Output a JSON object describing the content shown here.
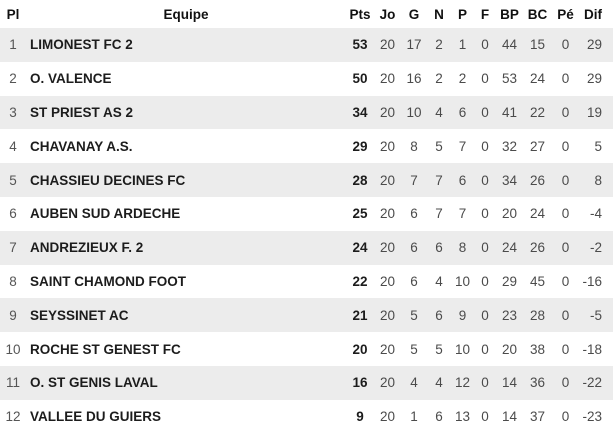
{
  "chart_data": {
    "type": "table",
    "description_colors": {
      "stripe_row_bg": "#ececec",
      "plain_row_bg": "#ffffff",
      "header_text": "#111111",
      "team_and_pts_text": "#1c1c1c",
      "stat_text": "#4b4b4b"
    },
    "columns": [
      {
        "key": "pl",
        "label": "Pl"
      },
      {
        "key": "equipe",
        "label": "Equipe"
      },
      {
        "key": "pts",
        "label": "Pts"
      },
      {
        "key": "jo",
        "label": "Jo"
      },
      {
        "key": "g",
        "label": "G"
      },
      {
        "key": "n",
        "label": "N"
      },
      {
        "key": "p",
        "label": "P"
      },
      {
        "key": "f",
        "label": "F"
      },
      {
        "key": "bp",
        "label": "BP"
      },
      {
        "key": "bc",
        "label": "BC"
      },
      {
        "key": "pe",
        "label": "Pé"
      },
      {
        "key": "dif",
        "label": "Dif"
      }
    ],
    "rows": [
      {
        "pl": 1,
        "equipe": "LIMONEST FC 2",
        "pts": 53,
        "jo": 20,
        "g": 17,
        "n": 2,
        "p": 1,
        "f": 0,
        "bp": 44,
        "bc": 15,
        "pe": 0,
        "dif": 29
      },
      {
        "pl": 2,
        "equipe": "O. VALENCE",
        "pts": 50,
        "jo": 20,
        "g": 16,
        "n": 2,
        "p": 2,
        "f": 0,
        "bp": 53,
        "bc": 24,
        "pe": 0,
        "dif": 29
      },
      {
        "pl": 3,
        "equipe": "ST PRIEST AS 2",
        "pts": 34,
        "jo": 20,
        "g": 10,
        "n": 4,
        "p": 6,
        "f": 0,
        "bp": 41,
        "bc": 22,
        "pe": 0,
        "dif": 19
      },
      {
        "pl": 4,
        "equipe": "CHAVANAY A.S.",
        "pts": 29,
        "jo": 20,
        "g": 8,
        "n": 5,
        "p": 7,
        "f": 0,
        "bp": 32,
        "bc": 27,
        "pe": 0,
        "dif": 5
      },
      {
        "pl": 5,
        "equipe": "CHASSIEU DECINES FC",
        "pts": 28,
        "jo": 20,
        "g": 7,
        "n": 7,
        "p": 6,
        "f": 0,
        "bp": 34,
        "bc": 26,
        "pe": 0,
        "dif": 8
      },
      {
        "pl": 6,
        "equipe": "AUBEN SUD ARDECHE",
        "pts": 25,
        "jo": 20,
        "g": 6,
        "n": 7,
        "p": 7,
        "f": 0,
        "bp": 20,
        "bc": 24,
        "pe": 0,
        "dif": -4
      },
      {
        "pl": 7,
        "equipe": "ANDREZIEUX F. 2",
        "pts": 24,
        "jo": 20,
        "g": 6,
        "n": 6,
        "p": 8,
        "f": 0,
        "bp": 24,
        "bc": 26,
        "pe": 0,
        "dif": -2
      },
      {
        "pl": 8,
        "equipe": "SAINT CHAMOND FOOT",
        "pts": 22,
        "jo": 20,
        "g": 6,
        "n": 4,
        "p": 10,
        "f": 0,
        "bp": 29,
        "bc": 45,
        "pe": 0,
        "dif": -16
      },
      {
        "pl": 9,
        "equipe": "SEYSSINET AC",
        "pts": 21,
        "jo": 20,
        "g": 5,
        "n": 6,
        "p": 9,
        "f": 0,
        "bp": 23,
        "bc": 28,
        "pe": 0,
        "dif": -5
      },
      {
        "pl": 10,
        "equipe": "ROCHE ST GENEST FC",
        "pts": 20,
        "jo": 20,
        "g": 5,
        "n": 5,
        "p": 10,
        "f": 0,
        "bp": 20,
        "bc": 38,
        "pe": 0,
        "dif": -18
      },
      {
        "pl": 11,
        "equipe": "O. ST GENIS LAVAL",
        "pts": 16,
        "jo": 20,
        "g": 4,
        "n": 4,
        "p": 12,
        "f": 0,
        "bp": 14,
        "bc": 36,
        "pe": 0,
        "dif": -22
      },
      {
        "pl": 12,
        "equipe": "VALLEE DU GUIERS",
        "pts": 9,
        "jo": 20,
        "g": 1,
        "n": 6,
        "p": 13,
        "f": 0,
        "bp": 14,
        "bc": 37,
        "pe": 0,
        "dif": -23
      }
    ]
  }
}
